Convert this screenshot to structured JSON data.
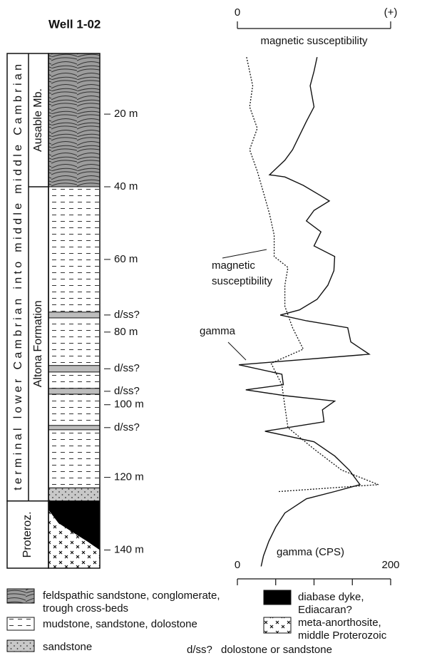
{
  "chart_data": {
    "type": "well-log",
    "title": "Well 1-02",
    "ylim": [
      3.3,
      145
    ],
    "yticks": [
      {
        "value": 20,
        "label": "20 m"
      },
      {
        "value": 40,
        "label": "40 m"
      },
      {
        "value": 60,
        "label": "60 m"
      },
      {
        "value": 80,
        "label": "80 m"
      },
      {
        "value": 100,
        "label": "100 m"
      },
      {
        "value": 120,
        "label": "120 m"
      },
      {
        "value": 140,
        "label": "140 m"
      }
    ],
    "x2label": "magnetic susceptibility",
    "x2lim": [
      0,
      1
    ],
    "x2ticks": [
      0,
      {
        "value": 1,
        "label": "(+)"
      }
    ],
    "xlabel": "gamma (CPS)",
    "xlim": [
      0,
      200
    ],
    "xticks": [
      0,
      {
        "value": 50,
        "label": null
      },
      {
        "value": 100,
        "label": null
      },
      {
        "value": 150,
        "label": null
      },
      200
    ],
    "series": [
      {
        "label_lines": [
          "gamma"
        ],
        "axis": "x",
        "color": "#111",
        "depth": [
          4.3,
          8.2,
          12.2,
          18,
          22,
          25.9,
          29.8,
          32.7,
          36.7,
          37.3,
          39.6,
          42.5,
          43.9,
          46.5,
          49.4,
          52.4,
          56.3,
          59.2,
          63.1,
          67.1,
          71,
          73.9,
          75.3,
          76.9,
          78.8,
          82.7,
          86.1,
          89,
          91.6,
          94.5,
          95.9,
          97.5,
          99,
          101.4,
          104.7,
          107.3,
          110.2,
          114.1,
          118,
          122,
          123.9,
          125.9,
          129.8,
          133.7,
          137.6,
          141.6,
          144.5
        ],
        "values": [
          104,
          100,
          95,
          100,
          90,
          81,
          72,
          62,
          42,
          62,
          86,
          109,
          120,
          100,
          90,
          109,
          100,
          127,
          126,
          118,
          104,
          81,
          56,
          90,
          144,
          148,
          172,
          2,
          58,
          60,
          11,
          62,
          127,
          111,
          113,
          36,
          100,
          127,
          146,
          160,
          127,
          90,
          62,
          50,
          41,
          34,
          31
        ]
      },
      {
        "label_lines": [
          "magnetic",
          "susceptibility"
        ],
        "axis": "x2",
        "color": "#111",
        "depth": [
          4.3,
          12.2,
          18,
          23.9,
          29.8,
          35.7,
          41.6,
          47.5,
          53.3,
          59.2,
          62.2,
          67.1,
          72.9,
          78.8,
          84.7,
          88.6,
          94.5,
          100.4,
          106.3,
          112.2,
          118,
          122,
          123.9
        ],
        "values": [
          0.06,
          0.1,
          0.08,
          0.13,
          0.08,
          0.13,
          0.17,
          0.21,
          0.24,
          0.24,
          0.33,
          0.31,
          0.31,
          0.36,
          0.43,
          0.22,
          0.29,
          0.31,
          0.33,
          0.5,
          0.68,
          0.92,
          0.27
        ]
      }
    ],
    "system": {
      "label": "terminal lower Cambrian into middle middle Cambrian",
      "top": 3.3,
      "bottom": 126.5
    },
    "units": [
      {
        "label": "Ausable Mb.",
        "top": 3.3,
        "bottom": 40
      },
      {
        "label": "Altona Formation",
        "top": 40,
        "bottom": 126.5
      },
      {
        "label": "Proteroz.",
        "top": 126.5,
        "bottom": 145
      }
    ],
    "legend": [
      {
        "label": [
          "feldspathic sandstone, conglomerate,",
          "trough cross-beds"
        ],
        "intervals": [
          [
            3.3,
            40
          ]
        ]
      },
      {
        "label": [
          "mudstone, sandstone, dolostone"
        ],
        "intervals": [
          [
            40,
            122.9
          ]
        ]
      },
      {
        "label": [
          "sandstone"
        ],
        "intervals": [
          [
            122.9,
            126.5
          ]
        ]
      },
      {
        "label": [
          "meta-anorthosite,",
          "middle Proterozoic"
        ],
        "intervals": [
          [
            126.5,
            145
          ]
        ]
      },
      {
        "label": [
          "diabase dyke,",
          "Ediacaran?"
        ],
        "intervals": [
          [
            126.5,
            140
          ]
        ]
      },
      {
        "symbol": "d/ss?",
        "label": [
          "dolostone or sandstone"
        ],
        "intervals": [
          [
            74.5,
            76.1
          ],
          [
            89.2,
            91
          ],
          [
            95.5,
            97.1
          ],
          [
            105.7,
            106.9
          ]
        ]
      }
    ]
  }
}
